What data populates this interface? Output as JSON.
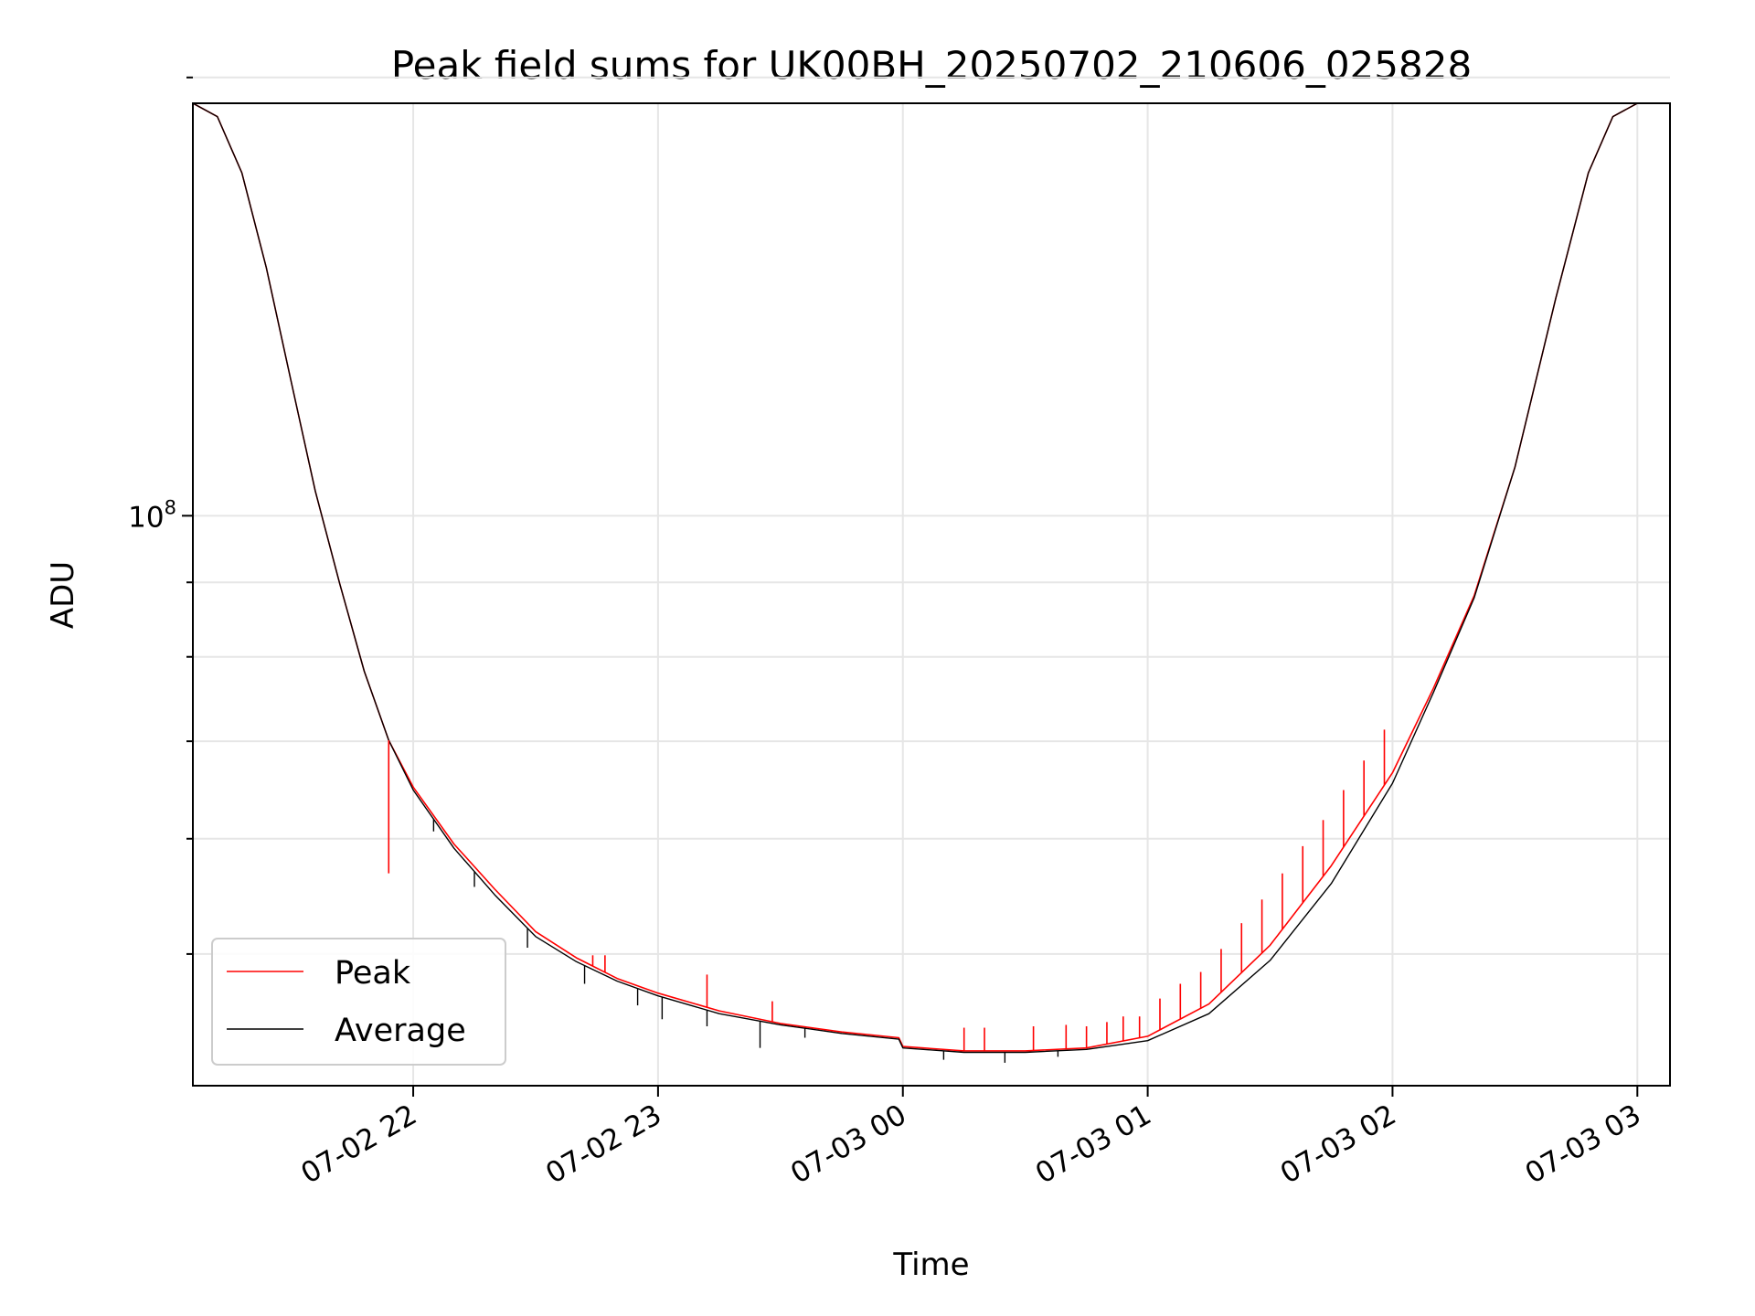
{
  "chart_data": {
    "type": "line",
    "title": "Peak field sums for UK00BH_20250702_210606_025828",
    "xlabel": "Time",
    "ylabel": "ADU",
    "yscale": "log",
    "grid": true,
    "legend_position": "lower-left",
    "x_ticks": [
      "07-02 22",
      "07-02 23",
      "07-03 00",
      "07-03 01",
      "07-03 02",
      "07-03 03"
    ],
    "y_ticks": [
      {
        "label": "10",
        "exponent": "8",
        "value": 100000000
      }
    ],
    "xlim": [
      "2025-07-02 21:06",
      "2025-07-03 03:08"
    ],
    "ylim": [
      40600000,
      192000000
    ],
    "series": [
      {
        "name": "Peak",
        "color": "#ff0000",
        "points": [
          [
            "2025-07-02 21:06",
            192000000
          ],
          [
            "2025-07-02 21:12",
            188000000
          ],
          [
            "2025-07-02 21:18",
            172000000
          ],
          [
            "2025-07-02 21:24",
            148000000
          ],
          [
            "2025-07-02 21:30",
            124000000
          ],
          [
            "2025-07-02 21:36",
            104000000
          ],
          [
            "2025-07-02 21:42",
            89800000
          ],
          [
            "2025-07-02 21:48",
            78200000
          ],
          [
            "2025-07-02 21:54",
            70100000
          ],
          [
            "2025-07-02 22:00",
            65100000
          ],
          [
            "2025-07-02 22:10",
            59500000
          ],
          [
            "2025-07-02 22:20",
            55400000
          ],
          [
            "2025-07-02 22:30",
            51800000
          ],
          [
            "2025-07-02 22:40",
            49700000
          ],
          [
            "2025-07-02 22:50",
            48100000
          ],
          [
            "2025-07-02 23:00",
            47000000
          ],
          [
            "2025-07-02 23:15",
            45700000
          ],
          [
            "2025-07-02 23:30",
            44800000
          ],
          [
            "2025-07-02 23:45",
            44200000
          ],
          [
            "2025-07-02 23:59",
            43800000
          ],
          [
            "2025-07-03 00:00",
            43200000
          ],
          [
            "2025-07-03 00:15",
            42900000
          ],
          [
            "2025-07-03 00:30",
            42900000
          ],
          [
            "2025-07-03 00:45",
            43100000
          ],
          [
            "2025-07-03 01:00",
            43900000
          ],
          [
            "2025-07-03 01:15",
            46200000
          ],
          [
            "2025-07-03 01:30",
            50700000
          ],
          [
            "2025-07-03 01:45",
            57500000
          ],
          [
            "2025-07-03 02:00",
            66600000
          ],
          [
            "2025-07-03 02:10",
            76100000
          ],
          [
            "2025-07-03 02:20",
            88100000
          ],
          [
            "2025-07-03 02:30",
            108000000
          ],
          [
            "2025-07-03 02:40",
            141000000
          ],
          [
            "2025-07-03 02:48",
            172000000
          ],
          [
            "2025-07-03 02:54",
            188000000
          ],
          [
            "2025-07-03 03:00",
            192000000
          ],
          [
            "2025-07-03 03:08",
            192000000
          ]
        ]
      },
      {
        "name": "Average",
        "color": "#000000",
        "points": [
          [
            "2025-07-02 21:06",
            192000000
          ],
          [
            "2025-07-02 21:12",
            188000000
          ],
          [
            "2025-07-02 21:18",
            172000000
          ],
          [
            "2025-07-02 21:24",
            148000000
          ],
          [
            "2025-07-02 21:30",
            124000000
          ],
          [
            "2025-07-02 21:36",
            104000000
          ],
          [
            "2025-07-02 21:42",
            89800000
          ],
          [
            "2025-07-02 21:48",
            78200000
          ],
          [
            "2025-07-02 21:54",
            70100000
          ],
          [
            "2025-07-02 22:00",
            64800000
          ],
          [
            "2025-07-02 22:10",
            59100000
          ],
          [
            "2025-07-02 22:20",
            54900000
          ],
          [
            "2025-07-02 22:30",
            51400000
          ],
          [
            "2025-07-02 22:40",
            49400000
          ],
          [
            "2025-07-02 22:50",
            47900000
          ],
          [
            "2025-07-02 23:00",
            46800000
          ],
          [
            "2025-07-02 23:15",
            45500000
          ],
          [
            "2025-07-02 23:30",
            44700000
          ],
          [
            "2025-07-02 23:45",
            44100000
          ],
          [
            "2025-07-02 23:59",
            43700000
          ],
          [
            "2025-07-03 00:00",
            43100000
          ],
          [
            "2025-07-03 00:15",
            42800000
          ],
          [
            "2025-07-03 00:30",
            42800000
          ],
          [
            "2025-07-03 00:45",
            43000000
          ],
          [
            "2025-07-03 01:00",
            43600000
          ],
          [
            "2025-07-03 01:15",
            45500000
          ],
          [
            "2025-07-03 01:30",
            49500000
          ],
          [
            "2025-07-03 01:45",
            55900000
          ],
          [
            "2025-07-03 02:00",
            65500000
          ],
          [
            "2025-07-03 02:10",
            75600000
          ],
          [
            "2025-07-03 02:20",
            87800000
          ],
          [
            "2025-07-03 02:30",
            108000000
          ],
          [
            "2025-07-03 02:40",
            141000000
          ],
          [
            "2025-07-03 02:48",
            172000000
          ],
          [
            "2025-07-03 02:54",
            188000000
          ],
          [
            "2025-07-03 03:00",
            192000000
          ],
          [
            "2025-07-03 03:08",
            192000000
          ]
        ]
      }
    ],
    "peak_spikes": [
      [
        "2025-07-02 21:54",
        56800000
      ],
      [
        "2025-07-02 22:44",
        49900000
      ],
      [
        "2025-07-02 22:47",
        49900000
      ],
      [
        "2025-07-02 23:12",
        48400000
      ],
      [
        "2025-07-02 23:28",
        46400000
      ],
      [
        "2025-07-03 00:15",
        44500000
      ],
      [
        "2025-07-03 00:20",
        44500000
      ],
      [
        "2025-07-03 00:32",
        44600000
      ],
      [
        "2025-07-03 00:40",
        44700000
      ],
      [
        "2025-07-03 00:45",
        44600000
      ],
      [
        "2025-07-03 00:50",
        44900000
      ],
      [
        "2025-07-03 00:54",
        45300000
      ],
      [
        "2025-07-03 00:58",
        45300000
      ],
      [
        "2025-07-03 01:03",
        46600000
      ],
      [
        "2025-07-03 01:08",
        47700000
      ],
      [
        "2025-07-03 01:13",
        48600000
      ],
      [
        "2025-07-03 01:18",
        50400000
      ],
      [
        "2025-07-03 01:23",
        52500000
      ],
      [
        "2025-07-03 01:28",
        54500000
      ],
      [
        "2025-07-03 01:33",
        56800000
      ],
      [
        "2025-07-03 01:38",
        59300000
      ],
      [
        "2025-07-03 01:43",
        61800000
      ],
      [
        "2025-07-03 01:48",
        64800000
      ],
      [
        "2025-07-03 01:53",
        67900000
      ],
      [
        "2025-07-03 01:58",
        71300000
      ]
    ],
    "average_dips": [
      [
        "2025-07-02 22:05",
        60700000
      ],
      [
        "2025-07-02 22:15",
        55600000
      ],
      [
        "2025-07-02 22:28",
        50500000
      ],
      [
        "2025-07-02 22:42",
        47700000
      ],
      [
        "2025-07-02 22:55",
        46100000
      ],
      [
        "2025-07-02 23:01",
        45100000
      ],
      [
        "2025-07-02 23:12",
        44600000
      ],
      [
        "2025-07-02 23:25",
        43100000
      ],
      [
        "2025-07-02 23:36",
        43800000
      ],
      [
        "2025-07-03 00:10",
        42300000
      ],
      [
        "2025-07-03 00:25",
        42100000
      ],
      [
        "2025-07-03 00:38",
        42500000
      ]
    ]
  }
}
